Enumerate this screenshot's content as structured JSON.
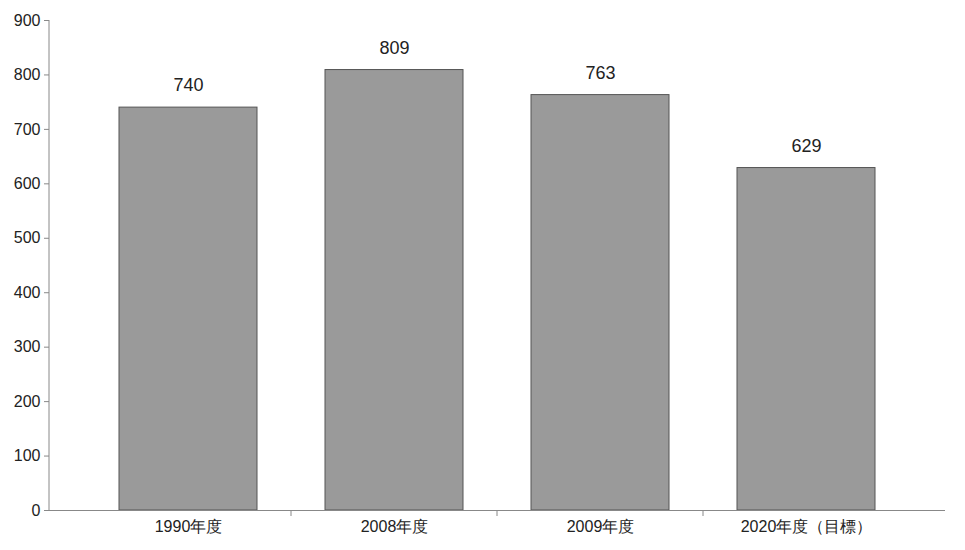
{
  "chart_data": {
    "type": "bar",
    "categories": [
      "1990年度",
      "2008年度",
      "2009年度",
      "2020年度（目標）"
    ],
    "values": [
      740,
      809,
      763,
      629
    ],
    "color": "#9a9a9a",
    "ylim": [
      0,
      900
    ],
    "yticks": [
      0,
      100,
      200,
      300,
      400,
      500,
      600,
      700,
      800,
      900
    ],
    "grid": false,
    "data_labels": true
  }
}
